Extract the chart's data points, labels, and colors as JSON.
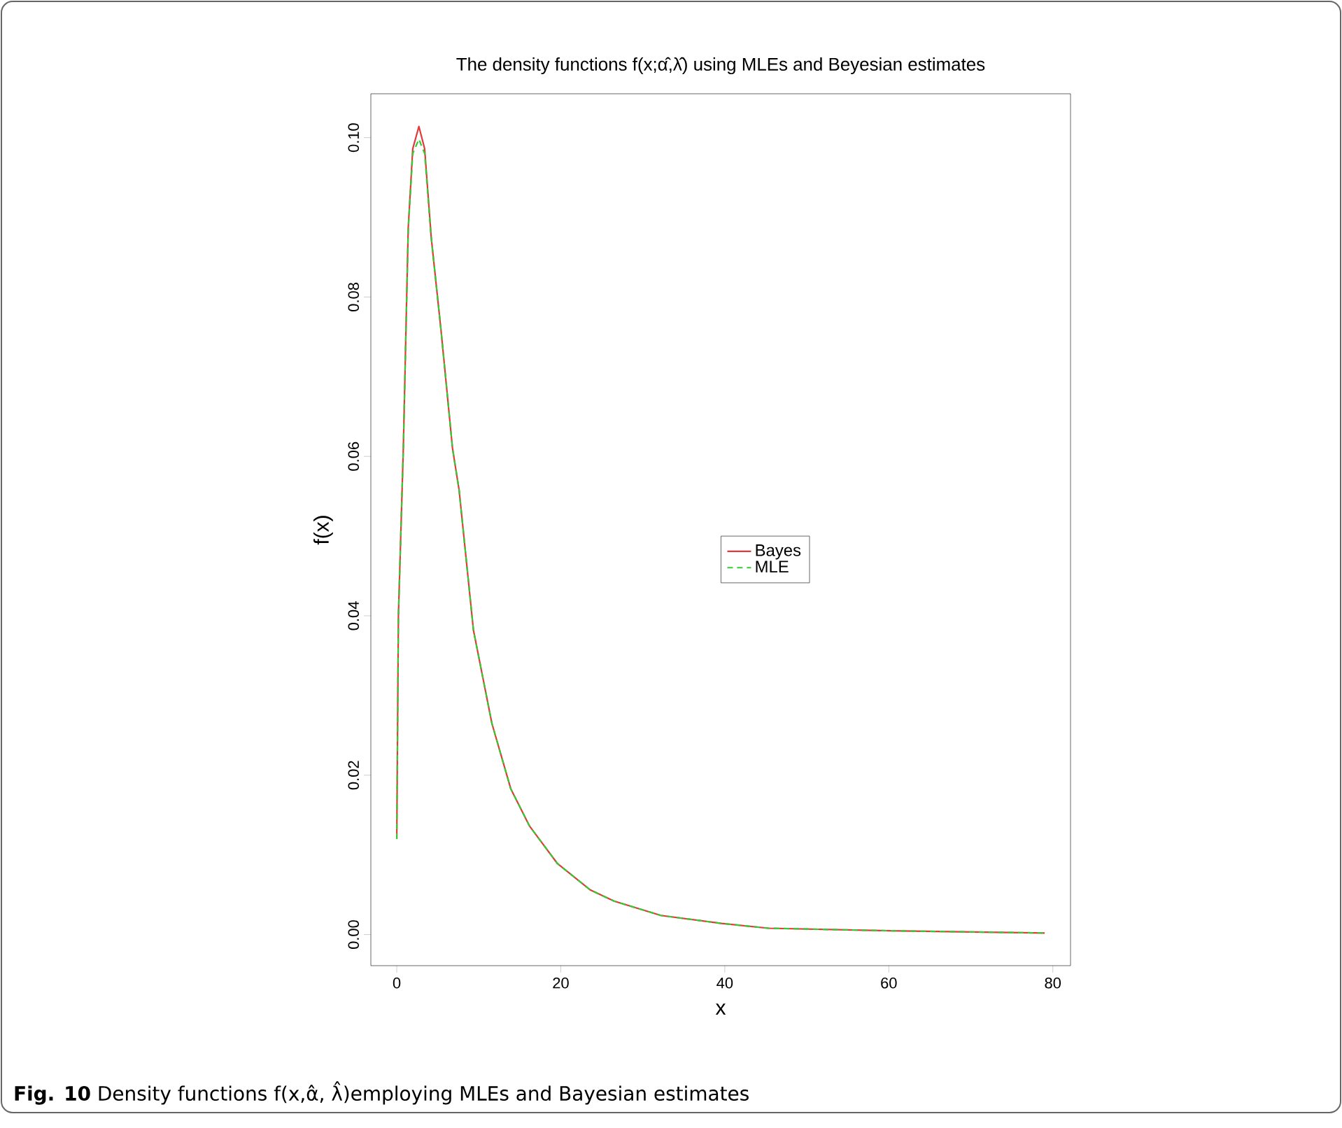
{
  "chart_data": {
    "type": "line",
    "title": "The density functions f(x;α̂,λ̂) using MLEs and Beyesian estimates",
    "xlabel": "x",
    "ylabel": "f(x)",
    "annotations": [
      "**Fig. 10**  Density functions f(x,α̂, λ̂)employing MLEs and Bayesian estimates"
    ],
    "xlim": [
      -3.16,
      82.16
    ],
    "ylim": [
      -0.0039,
      0.1055
    ],
    "xticks": [
      0,
      20,
      40,
      60,
      80
    ],
    "yticks": [
      {
        "value": 0,
        "label": "0.00"
      },
      {
        "value": 0.02,
        "label": "0.02"
      },
      {
        "value": 0.04,
        "label": "0.04"
      },
      {
        "value": 0.06,
        "label": "0.06"
      },
      {
        "value": 0.08,
        "label": "0.08"
      },
      {
        "value": 0.1,
        "label": "0.10"
      }
    ],
    "x": [
      0,
      0.2,
      0.8,
      1.4,
      1.95,
      2.7,
      3.4,
      4.2,
      5.4,
      6.8,
      7.6,
      9.35,
      11.6,
      13.9,
      16.2,
      19.6,
      23.6,
      26.5,
      32.2,
      39.6,
      45.3,
      59,
      79
    ],
    "series": [
      {
        "name": "Bayes",
        "color": "#e03a3a",
        "line_style": "solid",
        "values": [
          0.012,
          0.04,
          0.061,
          0.0887,
          0.0986,
          0.1014,
          0.0986,
          0.0875,
          0.0758,
          0.061,
          0.0558,
          0.0382,
          0.0265,
          0.0183,
          0.0136,
          0.0089,
          0.0056,
          0.0042,
          0.0024,
          0.0014,
          0.0008,
          0.0005,
          0.0002
        ]
      },
      {
        "name": "MLE",
        "color": "#33cc33",
        "line_style": "dashed",
        "values": [
          0.012,
          0.04,
          0.061,
          0.0885,
          0.098,
          0.0998,
          0.098,
          0.0875,
          0.0758,
          0.061,
          0.0558,
          0.0382,
          0.0265,
          0.0183,
          0.0136,
          0.0089,
          0.0056,
          0.0042,
          0.0024,
          0.0014,
          0.0008,
          0.0005,
          0.0002
        ]
      }
    ],
    "legend": "center",
    "grid": false,
    "marker": "none"
  }
}
